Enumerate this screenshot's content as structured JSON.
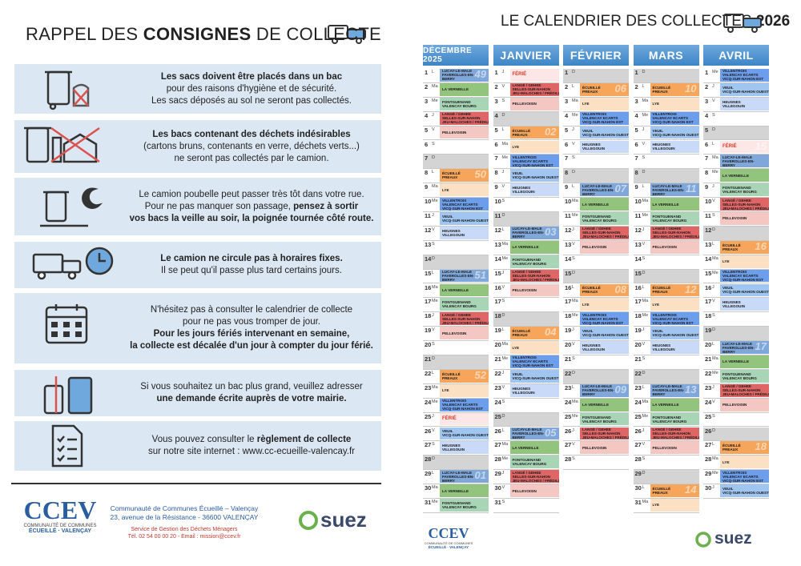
{
  "consignes": {
    "title": [
      {
        "t": "RAPPEL DES ",
        "b": false
      },
      {
        "t": "CONSIGNES",
        "b": true
      },
      {
        "t": " DE COLLECTE",
        "b": false
      }
    ],
    "blocks": [
      {
        "lines": [
          [
            {
              "t": "Les sacs doivent être placés dans un bac",
              "b": true
            }
          ],
          [
            {
              "t": "pour des raisons d'hygiène et de sécurité.",
              "b": false
            }
          ],
          [
            {
              "t": "Les sacs déposés au sol ne seront pas collectés.",
              "b": false
            }
          ]
        ]
      },
      {
        "lines": [
          [
            {
              "t": "Les bacs contenant des déchets indésirables",
              "b": true
            }
          ],
          [
            {
              "t": "(cartons bruns, contenants en verre, déchets verts...)",
              "b": false
            }
          ],
          [
            {
              "t": "ne seront pas collectés par le camion.",
              "b": false
            }
          ]
        ]
      },
      {
        "lines": [
          [
            {
              "t": "Le camion poubelle peut passer très tôt dans votre rue.",
              "b": false
            }
          ],
          [
            {
              "t": "Pour ne pas manquer son passage, ",
              "b": false
            },
            {
              "t": "pensez à sortir",
              "b": true
            }
          ],
          [
            {
              "t": "vos bacs la veille au soir, la poignée tournée côté route.",
              "b": true
            }
          ]
        ]
      },
      {
        "lines": [
          [
            {
              "t": "Le camion ne circule pas à horaires fixes.",
              "b": true
            }
          ],
          [
            {
              "t": "Il se peut qu'il passe plus tard certains jours.",
              "b": false
            }
          ]
        ]
      },
      {
        "lines": [
          [
            {
              "t": "N'hésitez pas à consulter le calendrier de collecte",
              "b": false
            }
          ],
          [
            {
              "t": "pour ne pas vous tromper de jour.",
              "b": false
            }
          ],
          [
            {
              "t": "Pour les jours fériés intervenant en semaine,",
              "b": true
            }
          ],
          [
            {
              "t": "la collecte est décalée d'un jour à compter du jour férié.",
              "b": true
            }
          ]
        ]
      },
      {
        "lines": [
          [
            {
              "t": "Si vous souhaitez un bac plus grand, veuillez adresser",
              "b": false
            }
          ],
          [
            {
              "t": "une demande écrite auprès de votre mairie.",
              "b": true
            }
          ]
        ]
      },
      {
        "lines": [
          [
            {
              "t": "Vous pouvez consulter le ",
              "b": false
            },
            {
              "t": "règlement de collecte",
              "b": true
            }
          ],
          [
            {
              "t": "sur notre site internet : www.cc-ecueille-valencay.fr",
              "b": false
            }
          ]
        ]
      }
    ]
  },
  "footer": {
    "logo": {
      "name": "CCEV",
      "line1": "COMMUNAUTÉ DE COMMUNES",
      "line2": "ÉCUEILLÉ · VALENÇAY"
    },
    "address": [
      "Communauté de Communes Écueillé – Valençay",
      "23, avenue de la Résistance - 36600 VALENÇAY"
    ],
    "service": [
      "Service de Gestion des Déchets Ménagers",
      "Tél. 02 54 00 00 20 - Email : mission@ccev.fr"
    ],
    "partner": "suez"
  },
  "calendrier": {
    "title": [
      {
        "t": "LE CALENDRIER DES COLLECTES ",
        "b": false
      },
      {
        "t": "2026",
        "b": true
      }
    ],
    "zones": [
      {
        "lines": [
          "LUCAY-LE-MALE",
          "FAVEROLLES-EN-",
          "BERRY"
        ],
        "color": "#7fa7d9"
      },
      {
        "lines": [
          "LA VERNEILLE"
        ],
        "color": "#93c47d"
      },
      {
        "lines": [
          "FONTGUENAND",
          "VALENCAY BOURG"
        ],
        "color": "#a8d5b5"
      },
      {
        "lines": [
          "LANGÉ / GEHEE",
          "SELLES-SUR-NAHON",
          "JEU-MALOCHES / FRÉDILLE"
        ],
        "color": "#e06666"
      },
      {
        "lines": [
          "PELLEVOISIN"
        ],
        "color": "#f4c7c3"
      },
      {
        "lines": [
          "ÉCUEILLÉ",
          "PREAUX"
        ],
        "color": "#f6a55a"
      },
      {
        "lines": [
          "LYE"
        ],
        "color": "#fbe0c3"
      },
      {
        "lines": [
          "VILLENTROIS",
          "VALENCAY ECARTS",
          "VICQ-SUR-NAHON EST"
        ],
        "color": "#6d9eeb"
      },
      {
        "lines": [
          "VEUIL",
          "VICQ-SUR-NAHON OUEST"
        ],
        "color": "#9fc5f0"
      },
      {
        "lines": [
          "HEUGNES",
          "VILLEGOUIN"
        ],
        "color": "#c9daf8"
      },
      {
        "lines": [
          "FÉRIÉ"
        ],
        "color": "#fde6e6",
        "text_color": "#d33a2c"
      }
    ],
    "months": [
      {
        "name": "DÉCEMBRE 2025",
        "days": [
          {
            "n": 1,
            "w": "L",
            "z": 0,
            "k": "49"
          },
          {
            "n": 2,
            "w": "Ma",
            "z": 1
          },
          {
            "n": 3,
            "w": "Me",
            "z": 2
          },
          {
            "n": 4,
            "w": "J",
            "z": 3
          },
          {
            "n": 5,
            "w": "V",
            "z": 4
          },
          {
            "n": 6,
            "w": "S"
          },
          {
            "n": 7,
            "w": "D"
          },
          {
            "n": 8,
            "w": "L",
            "z": 5,
            "k": "50"
          },
          {
            "n": 9,
            "w": "Ma",
            "z": 6
          },
          {
            "n": 10,
            "w": "Me",
            "z": 7
          },
          {
            "n": 11,
            "w": "J",
            "z": 8
          },
          {
            "n": 12,
            "w": "V",
            "z": 9
          },
          {
            "n": 13,
            "w": "S"
          },
          {
            "n": 14,
            "w": "D"
          },
          {
            "n": 15,
            "w": "L",
            "z": 0,
            "k": "51"
          },
          {
            "n": 16,
            "w": "Ma",
            "z": 1
          },
          {
            "n": 17,
            "w": "Me",
            "z": 2
          },
          {
            "n": 18,
            "w": "J",
            "z": 3
          },
          {
            "n": 19,
            "w": "V",
            "z": 4
          },
          {
            "n": 20,
            "w": "S"
          },
          {
            "n": 21,
            "w": "D"
          },
          {
            "n": 22,
            "w": "L",
            "z": 5,
            "k": "52"
          },
          {
            "n": 23,
            "w": "Ma",
            "z": 6
          },
          {
            "n": 24,
            "w": "Me",
            "z": 7
          },
          {
            "n": 25,
            "w": "J",
            "z": 10
          },
          {
            "n": 26,
            "w": "V",
            "z": 8
          },
          {
            "n": 27,
            "w": "S",
            "z": 9
          },
          {
            "n": 28,
            "w": "D"
          },
          {
            "n": 29,
            "w": "L",
            "z": 0,
            "k": "01"
          },
          {
            "n": 30,
            "w": "Ma",
            "z": 1
          },
          {
            "n": 31,
            "w": "Me",
            "z": 2
          }
        ]
      },
      {
        "name": "JANVIER",
        "days": [
          {
            "n": 1,
            "w": "J",
            "z": 10
          },
          {
            "n": 2,
            "w": "V",
            "z": 3
          },
          {
            "n": 3,
            "w": "S",
            "z": 4
          },
          {
            "n": 4,
            "w": "D"
          },
          {
            "n": 5,
            "w": "L",
            "z": 5,
            "k": "02"
          },
          {
            "n": 6,
            "w": "Ma",
            "z": 6
          },
          {
            "n": 7,
            "w": "Me",
            "z": 7
          },
          {
            "n": 8,
            "w": "J",
            "z": 8
          },
          {
            "n": 9,
            "w": "V",
            "z": 9
          },
          {
            "n": 10,
            "w": "S"
          },
          {
            "n": 11,
            "w": "D"
          },
          {
            "n": 12,
            "w": "L",
            "z": 0,
            "k": "03"
          },
          {
            "n": 13,
            "w": "Ma",
            "z": 1
          },
          {
            "n": 14,
            "w": "Me",
            "z": 2
          },
          {
            "n": 15,
            "w": "J",
            "z": 3
          },
          {
            "n": 16,
            "w": "V",
            "z": 4
          },
          {
            "n": 17,
            "w": "S"
          },
          {
            "n": 18,
            "w": "D"
          },
          {
            "n": 19,
            "w": "L",
            "z": 5,
            "k": "04"
          },
          {
            "n": 20,
            "w": "Ma",
            "z": 6
          },
          {
            "n": 21,
            "w": "Me",
            "z": 7
          },
          {
            "n": 22,
            "w": "J",
            "z": 8
          },
          {
            "n": 23,
            "w": "V",
            "z": 9
          },
          {
            "n": 24,
            "w": "S"
          },
          {
            "n": 25,
            "w": "D"
          },
          {
            "n": 26,
            "w": "L",
            "z": 0,
            "k": "05"
          },
          {
            "n": 27,
            "w": "Ma",
            "z": 1
          },
          {
            "n": 28,
            "w": "Me",
            "z": 2
          },
          {
            "n": 29,
            "w": "J",
            "z": 3
          },
          {
            "n": 30,
            "w": "V",
            "z": 4
          },
          {
            "n": 31,
            "w": "S"
          }
        ]
      },
      {
        "name": "FÉVRIER",
        "days": [
          {
            "n": 1,
            "w": "D"
          },
          {
            "n": 2,
            "w": "L",
            "z": 5,
            "k": "06"
          },
          {
            "n": 3,
            "w": "Ma",
            "z": 6
          },
          {
            "n": 4,
            "w": "Me",
            "z": 7
          },
          {
            "n": 5,
            "w": "J",
            "z": 8
          },
          {
            "n": 6,
            "w": "V",
            "z": 9
          },
          {
            "n": 7,
            "w": "S"
          },
          {
            "n": 8,
            "w": "D"
          },
          {
            "n": 9,
            "w": "L",
            "z": 0,
            "k": "07"
          },
          {
            "n": 10,
            "w": "Ma",
            "z": 1
          },
          {
            "n": 11,
            "w": "Me",
            "z": 2
          },
          {
            "n": 12,
            "w": "J",
            "z": 3
          },
          {
            "n": 13,
            "w": "V",
            "z": 4
          },
          {
            "n": 14,
            "w": "S"
          },
          {
            "n": 15,
            "w": "D"
          },
          {
            "n": 16,
            "w": "L",
            "z": 5,
            "k": "08"
          },
          {
            "n": 17,
            "w": "Ma",
            "z": 6
          },
          {
            "n": 18,
            "w": "Me",
            "z": 7
          },
          {
            "n": 19,
            "w": "J",
            "z": 8
          },
          {
            "n": 20,
            "w": "V",
            "z": 9
          },
          {
            "n": 21,
            "w": "S"
          },
          {
            "n": 22,
            "w": "D"
          },
          {
            "n": 23,
            "w": "L",
            "z": 0,
            "k": "09"
          },
          {
            "n": 24,
            "w": "Ma",
            "z": 1
          },
          {
            "n": 25,
            "w": "Me",
            "z": 2
          },
          {
            "n": 26,
            "w": "J",
            "z": 3
          },
          {
            "n": 27,
            "w": "V",
            "z": 4
          },
          {
            "n": 28,
            "w": "S"
          }
        ]
      },
      {
        "name": "MARS",
        "days": [
          {
            "n": 1,
            "w": "D"
          },
          {
            "n": 2,
            "w": "L",
            "z": 5,
            "k": "10"
          },
          {
            "n": 3,
            "w": "Ma",
            "z": 6
          },
          {
            "n": 4,
            "w": "Me",
            "z": 7
          },
          {
            "n": 5,
            "w": "J",
            "z": 8
          },
          {
            "n": 6,
            "w": "V",
            "z": 9
          },
          {
            "n": 7,
            "w": "S"
          },
          {
            "n": 8,
            "w": "D"
          },
          {
            "n": 9,
            "w": "L",
            "z": 0,
            "k": "11"
          },
          {
            "n": 10,
            "w": "Ma",
            "z": 1
          },
          {
            "n": 11,
            "w": "Me",
            "z": 2
          },
          {
            "n": 12,
            "w": "J",
            "z": 3
          },
          {
            "n": 13,
            "w": "V",
            "z": 4
          },
          {
            "n": 14,
            "w": "S"
          },
          {
            "n": 15,
            "w": "D"
          },
          {
            "n": 16,
            "w": "L",
            "z": 5,
            "k": "12"
          },
          {
            "n": 17,
            "w": "Ma",
            "z": 6
          },
          {
            "n": 18,
            "w": "Me",
            "z": 7
          },
          {
            "n": 19,
            "w": "J",
            "z": 8
          },
          {
            "n": 20,
            "w": "V",
            "z": 9
          },
          {
            "n": 21,
            "w": "S"
          },
          {
            "n": 22,
            "w": "D"
          },
          {
            "n": 23,
            "w": "L",
            "z": 0,
            "k": "13"
          },
          {
            "n": 24,
            "w": "Ma",
            "z": 1
          },
          {
            "n": 25,
            "w": "Me",
            "z": 2
          },
          {
            "n": 26,
            "w": "J",
            "z": 3
          },
          {
            "n": 27,
            "w": "V",
            "z": 4
          },
          {
            "n": 28,
            "w": "S"
          },
          {
            "n": 29,
            "w": "D"
          },
          {
            "n": 30,
            "w": "L",
            "z": 5,
            "k": "14"
          },
          {
            "n": 31,
            "w": "Ma",
            "z": 6
          }
        ]
      },
      {
        "name": "AVRIL",
        "days": [
          {
            "n": 1,
            "w": "Me",
            "z": 7
          },
          {
            "n": 2,
            "w": "J",
            "z": 8
          },
          {
            "n": 3,
            "w": "V",
            "z": 9
          },
          {
            "n": 4,
            "w": "S"
          },
          {
            "n": 5,
            "w": "D"
          },
          {
            "n": 6,
            "w": "L",
            "z": 10,
            "k": "15"
          },
          {
            "n": 7,
            "w": "Ma",
            "z": 0
          },
          {
            "n": 8,
            "w": "Me",
            "z": 1
          },
          {
            "n": 9,
            "w": "J",
            "z": 2
          },
          {
            "n": 10,
            "w": "V",
            "z": 3
          },
          {
            "n": 11,
            "w": "S",
            "z": 4
          },
          {
            "n": 12,
            "w": "D"
          },
          {
            "n": 13,
            "w": "L",
            "z": 5,
            "k": "16"
          },
          {
            "n": 14,
            "w": "Ma",
            "z": 6
          },
          {
            "n": 15,
            "w": "Me",
            "z": 7
          },
          {
            "n": 16,
            "w": "J",
            "z": 8
          },
          {
            "n": 17,
            "w": "V",
            "z": 9
          },
          {
            "n": 18,
            "w": "S"
          },
          {
            "n": 19,
            "w": "D"
          },
          {
            "n": 20,
            "w": "L",
            "z": 0,
            "k": "17"
          },
          {
            "n": 21,
            "w": "Ma",
            "z": 1
          },
          {
            "n": 22,
            "w": "Me",
            "z": 2
          },
          {
            "n": 23,
            "w": "J",
            "z": 3
          },
          {
            "n": 24,
            "w": "V",
            "z": 4
          },
          {
            "n": 25,
            "w": "S"
          },
          {
            "n": 26,
            "w": "D"
          },
          {
            "n": 27,
            "w": "L",
            "z": 5,
            "k": "18"
          },
          {
            "n": 28,
            "w": "Ma",
            "z": 6
          },
          {
            "n": 29,
            "w": "Me",
            "z": 7
          },
          {
            "n": 30,
            "w": "J",
            "z": 8
          }
        ]
      }
    ]
  }
}
